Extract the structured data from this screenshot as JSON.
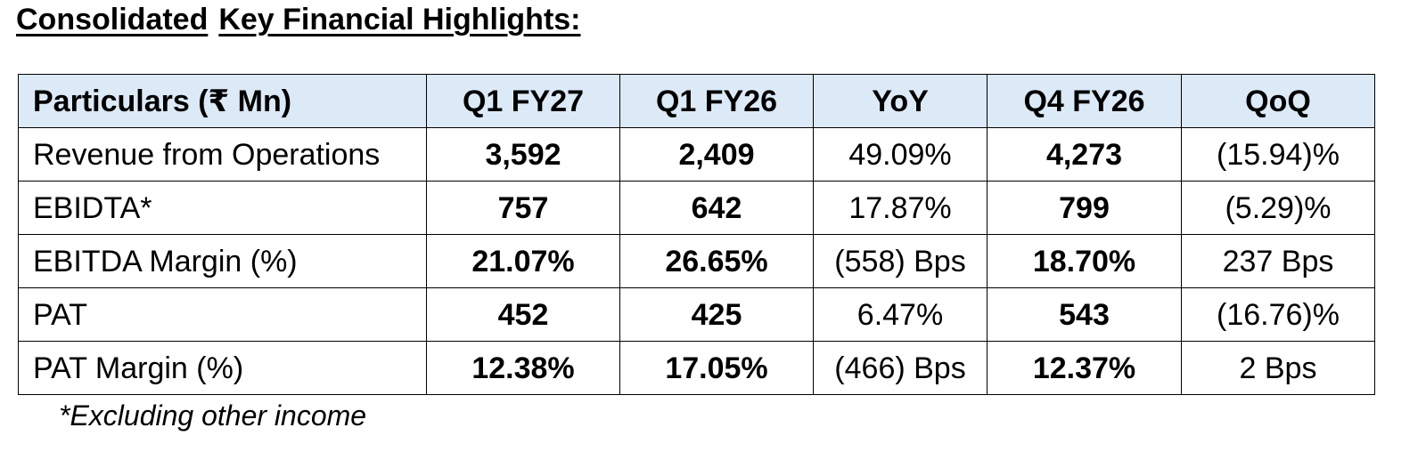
{
  "title": {
    "part1": "Consolidated",
    "part2": "Key Financial Highlights:"
  },
  "table": {
    "headers": [
      "Particulars (₹ Mn)",
      "Q1 FY27",
      "Q1 FY26",
      "YoY",
      "Q4 FY26",
      "QoQ"
    ],
    "rows": [
      [
        "Revenue from Operations",
        "3,592",
        "2,409",
        "49.09%",
        "4,273",
        "(15.94)%"
      ],
      [
        "EBIDTA*",
        "757",
        "642",
        "17.87%",
        "799",
        "(5.29)%"
      ],
      [
        "EBITDA Margin (%)",
        "21.07%",
        "26.65%",
        "(558) Bps",
        "18.70%",
        "237 Bps"
      ],
      [
        "PAT",
        "452",
        "425",
        "6.47%",
        "543",
        "(16.76)%"
      ],
      [
        "PAT Margin (%)",
        "12.38%",
        "17.05%",
        "(466) Bps",
        "12.37%",
        "2 Bps"
      ]
    ]
  },
  "footnote": "*Excluding other income"
}
